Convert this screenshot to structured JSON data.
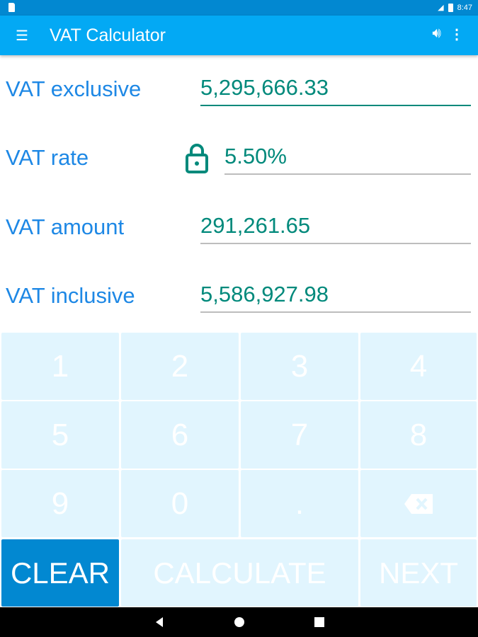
{
  "status_bar": {
    "time": "8:47"
  },
  "app_bar": {
    "title": "VAT Calculator",
    "menu_icon": "hamburger-icon",
    "sound_icon": "volume-icon",
    "more_icon": "more-vert-icon"
  },
  "fields": [
    {
      "label": "VAT exclusive",
      "value": "5,295,666.33"
    },
    {
      "label": "VAT rate",
      "value": "5.50%",
      "locked": true
    },
    {
      "label": "VAT amount",
      "value": "291,261.65"
    },
    {
      "label": "VAT inclusive",
      "value": "5,586,927.98"
    }
  ],
  "keypad": {
    "keys": [
      "1",
      "2",
      "3",
      "4",
      "5",
      "6",
      "7",
      "8",
      "9",
      "0",
      "."
    ],
    "backspace_icon": "backspace-icon",
    "clear": "CLEAR",
    "calculate": "CALCULATE",
    "next": "NEXT"
  },
  "colors": {
    "primary": "#03a9f4",
    "primary_dark": "#0288d1",
    "label": "#1e88e5",
    "value": "#00897b",
    "key_bg": "#e1f5fe"
  }
}
